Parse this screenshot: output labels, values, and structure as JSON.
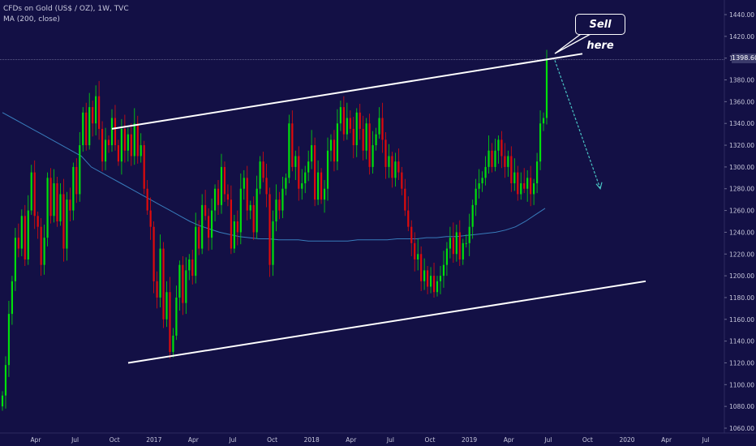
{
  "header": {
    "symbol_line": "CFDs on Gold (US$ / OZ), 1W, TVC",
    "indicator_line": "MA (200, close)"
  },
  "annotation": {
    "text": "Sell here"
  },
  "last_price_label": "1398.60",
  "colors": {
    "background": "#131045",
    "up": "#00e00b",
    "down": "#e00b0b",
    "ma": "#3f8fd0",
    "trendline": "#ffffff",
    "arrow": "#49c4c4",
    "axis_text": "#c8c8dc"
  },
  "chart_data": {
    "type": "candlestick",
    "title": "CFDs on Gold (US$ / OZ), 1W, TVC",
    "ylim": [
      1055,
      1450
    ],
    "y_ticks": [
      1060,
      1080,
      1100,
      1120,
      1140,
      1160,
      1180,
      1200,
      1220,
      1240,
      1260,
      1280,
      1300,
      1320,
      1340,
      1360,
      1380,
      1400,
      1420,
      1440
    ],
    "x_ticks": [
      "Apr",
      "Jul",
      "Oct",
      "2017",
      "Apr",
      "Jul",
      "Oct",
      "2018",
      "Apr",
      "Jul",
      "Oct",
      "2019",
      "Apr",
      "Jul",
      "Oct",
      "2020",
      "Apr",
      "Jul"
    ],
    "last_price": 1398.6,
    "closes": [
      1090,
      1118,
      1165,
      1195,
      1235,
      1225,
      1255,
      1215,
      1260,
      1295,
      1255,
      1245,
      1210,
      1235,
      1290,
      1255,
      1285,
      1250,
      1275,
      1225,
      1270,
      1260,
      1300,
      1275,
      1320,
      1350,
      1320,
      1355,
      1340,
      1365,
      1335,
      1305,
      1325,
      1320,
      1345,
      1320,
      1305,
      1335,
      1315,
      1330,
      1310,
      1340,
      1310,
      1320,
      1280,
      1260,
      1245,
      1195,
      1180,
      1225,
      1160,
      1185,
      1130,
      1145,
      1180,
      1210,
      1175,
      1205,
      1215,
      1200,
      1245,
      1225,
      1265,
      1255,
      1235,
      1260,
      1280,
      1265,
      1300,
      1275,
      1270,
      1225,
      1250,
      1240,
      1280,
      1290,
      1260,
      1265,
      1240,
      1280,
      1305,
      1290,
      1275,
      1210,
      1250,
      1270,
      1260,
      1280,
      1290,
      1340,
      1300,
      1310,
      1280,
      1285,
      1295,
      1305,
      1320,
      1270,
      1295,
      1270,
      1280,
      1315,
      1325,
      1305,
      1340,
      1355,
      1330,
      1345,
      1335,
      1320,
      1350,
      1335,
      1315,
      1340,
      1300,
      1320,
      1330,
      1345,
      1325,
      1300,
      1310,
      1290,
      1305,
      1295,
      1280,
      1260,
      1245,
      1230,
      1215,
      1220,
      1195,
      1205,
      1190,
      1200,
      1185,
      1195,
      1200,
      1210,
      1225,
      1235,
      1220,
      1240,
      1215,
      1230,
      1230,
      1245,
      1265,
      1280,
      1285,
      1290,
      1300,
      1315,
      1300,
      1315,
      1325,
      1310,
      1300,
      1310,
      1285,
      1295,
      1275,
      1285,
      1280,
      1290,
      1275,
      1285,
      1305,
      1340,
      1345,
      1398.6
    ],
    "ma200": [
      1350,
      1345,
      1340,
      1335,
      1330,
      1325,
      1320,
      1315,
      1310,
      1300,
      1295,
      1290,
      1285,
      1280,
      1275,
      1270,
      1265,
      1260,
      1255,
      1250,
      1246,
      1243,
      1240,
      1238,
      1236,
      1235,
      1234,
      1234,
      1233,
      1233,
      1233,
      1232,
      1232,
      1232,
      1232,
      1232,
      1233,
      1233,
      1233,
      1233,
      1234,
      1234,
      1234,
      1235,
      1235,
      1236,
      1236,
      1237,
      1238,
      1239,
      1240,
      1242,
      1245,
      1250,
      1256,
      1262
    ],
    "channel_upper": {
      "from": [
        "Oct 2016",
        1335
      ],
      "to": [
        "Aug 2019",
        1404
      ]
    },
    "channel_lower": {
      "from": [
        "Dec 2016",
        1120
      ],
      "to": [
        "Dec 2019",
        1195
      ]
    },
    "projection_arrow": {
      "from": [
        "Jul 2019",
        1398
      ],
      "to": [
        "Sep 2019",
        1280
      ]
    }
  }
}
